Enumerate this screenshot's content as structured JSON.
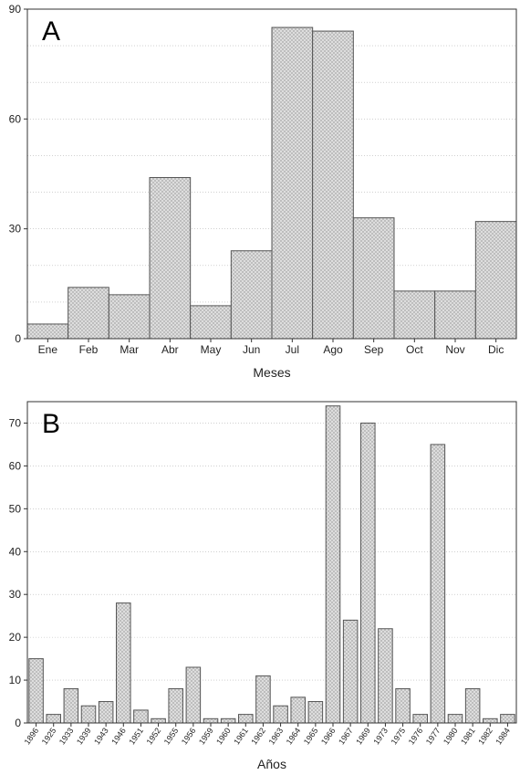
{
  "chart_data": [
    {
      "type": "bar",
      "panel_label": "A",
      "xlabel": "Meses",
      "ylabel": "",
      "categories": [
        "Ene",
        "Feb",
        "Mar",
        "Abr",
        "May",
        "Jun",
        "Jul",
        "Ago",
        "Sep",
        "Oct",
        "Nov",
        "Dic"
      ],
      "values": [
        4,
        14,
        12,
        44,
        9,
        24,
        85,
        84,
        33,
        13,
        13,
        32
      ],
      "ylim": [
        0,
        90
      ],
      "yticks": [
        0,
        30,
        60,
        90
      ],
      "grid": true,
      "bar_color": "#d4d4d4"
    },
    {
      "type": "bar",
      "panel_label": "B",
      "xlabel": "Años",
      "ylabel": "",
      "categories": [
        "1896",
        "1925",
        "1933",
        "1939",
        "1943",
        "1946",
        "1951",
        "1952",
        "1955",
        "1956",
        "1959",
        "1960",
        "1961",
        "1962",
        "1963",
        "1964",
        "1965",
        "1966",
        "1967",
        "1969",
        "1973",
        "1975",
        "1976",
        "1977",
        "1980",
        "1981",
        "1982",
        "1984"
      ],
      "values": [
        15,
        2,
        8,
        4,
        5,
        28,
        3,
        1,
        8,
        13,
        1,
        1,
        2,
        11,
        4,
        6,
        5,
        74,
        24,
        70,
        22,
        8,
        2,
        65,
        2,
        8,
        1,
        2
      ],
      "ylim": [
        0,
        75
      ],
      "yticks": [
        0,
        10,
        20,
        30,
        40,
        50,
        60,
        70
      ],
      "grid": true,
      "bar_color": "#d4d4d4"
    }
  ]
}
